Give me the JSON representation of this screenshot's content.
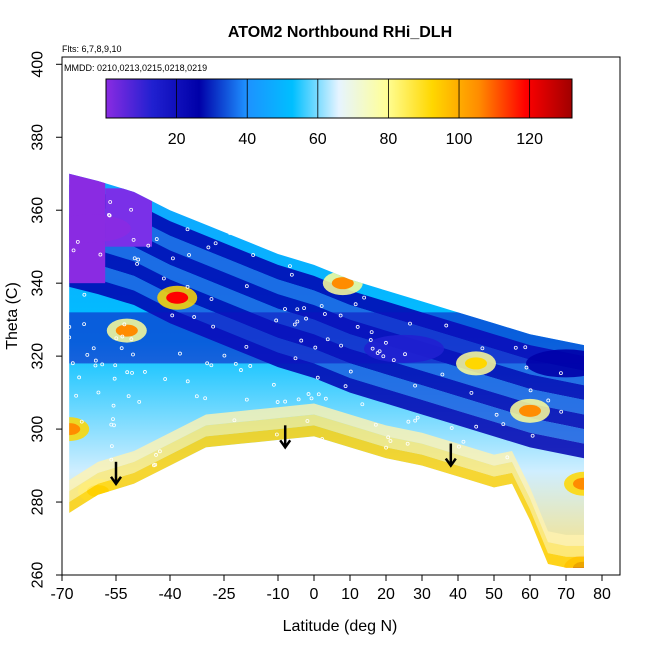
{
  "chart_data": {
    "type": "heatmap",
    "title": "ATOM2 Northbound RHi_DLH",
    "notes": [
      "Flts: 6,7,8,9,10",
      "MMDD: 0210,0213,0215,0218,0219"
    ],
    "xlabel": "Latitude (deg N)",
    "ylabel": "Theta (C)",
    "xlim": [
      -70,
      85
    ],
    "ylim": [
      260,
      402
    ],
    "x_ticks": [
      -70,
      -55,
      -40,
      -25,
      -10,
      0,
      10,
      20,
      30,
      40,
      50,
      60,
      70,
      80
    ],
    "x_tick_labels": [
      "-70",
      "-55",
      "-40",
      "-25",
      "-10",
      "0",
      "10",
      "20",
      "30",
      "40",
      "50",
      "60",
      "70",
      "80"
    ],
    "y_ticks": [
      260,
      280,
      300,
      320,
      340,
      360,
      380,
      400
    ],
    "y_tick_labels": [
      "260",
      "280",
      "300",
      "320",
      "340",
      "360",
      "380",
      "400"
    ],
    "colorbar": {
      "range": [
        0,
        132
      ],
      "ticks": [
        20,
        40,
        60,
        80,
        100,
        120
      ],
      "tick_labels": [
        "20",
        "40",
        "60",
        "80",
        "100",
        "120"
      ],
      "colors": [
        "#8a2be2",
        "#2020d0",
        "#0000a8",
        "#1e90ff",
        "#00bfff",
        "#e6f4ff",
        "#ffff99",
        "#ffd700",
        "#ff8c00",
        "#ff0000",
        "#a00000"
      ]
    },
    "upper_boundary": [
      [
        -68,
        370
      ],
      [
        -60,
        368
      ],
      [
        -50,
        365
      ],
      [
        -40,
        360
      ],
      [
        -30,
        356
      ],
      [
        -20,
        352
      ],
      [
        -10,
        348
      ],
      [
        0,
        345
      ],
      [
        10,
        341
      ],
      [
        20,
        338
      ],
      [
        30,
        335
      ],
      [
        40,
        332
      ],
      [
        50,
        329
      ],
      [
        60,
        326
      ],
      [
        70,
        324
      ],
      [
        75,
        323
      ]
    ],
    "lower_boundary": [
      [
        -68,
        277
      ],
      [
        -60,
        282
      ],
      [
        -50,
        285
      ],
      [
        -40,
        290
      ],
      [
        -30,
        295
      ],
      [
        -20,
        296
      ],
      [
        -10,
        297
      ],
      [
        0,
        298
      ],
      [
        10,
        295
      ],
      [
        20,
        292
      ],
      [
        30,
        290
      ],
      [
        40,
        287
      ],
      [
        50,
        284
      ],
      [
        55,
        285
      ],
      [
        60,
        275
      ],
      [
        65,
        263
      ],
      [
        70,
        262
      ],
      [
        75,
        262
      ]
    ],
    "arrows": [
      [
        -55,
        288
      ],
      [
        -8,
        298
      ],
      [
        38,
        293
      ]
    ],
    "high_value_regions": [
      {
        "lat": -68,
        "theta": 300,
        "value": 110
      },
      {
        "lat": -60,
        "theta": 283,
        "value": 95
      },
      {
        "lat": -38,
        "theta": 336,
        "value": 115
      },
      {
        "lat": -52,
        "theta": 327,
        "value": 105
      },
      {
        "lat": 8,
        "theta": 340,
        "value": 100
      },
      {
        "lat": 45,
        "theta": 318,
        "value": 95
      },
      {
        "lat": 60,
        "theta": 305,
        "value": 100
      },
      {
        "lat": 75,
        "theta": 285,
        "value": 110
      },
      {
        "lat": 75,
        "theta": 262,
        "value": 130
      }
    ],
    "low_value_regions": [
      {
        "lat": -62,
        "theta": 355,
        "value": 5
      },
      {
        "lat": 25,
        "theta": 322,
        "value": 10
      },
      {
        "lat": 70,
        "theta": 318,
        "value": 20
      }
    ]
  }
}
